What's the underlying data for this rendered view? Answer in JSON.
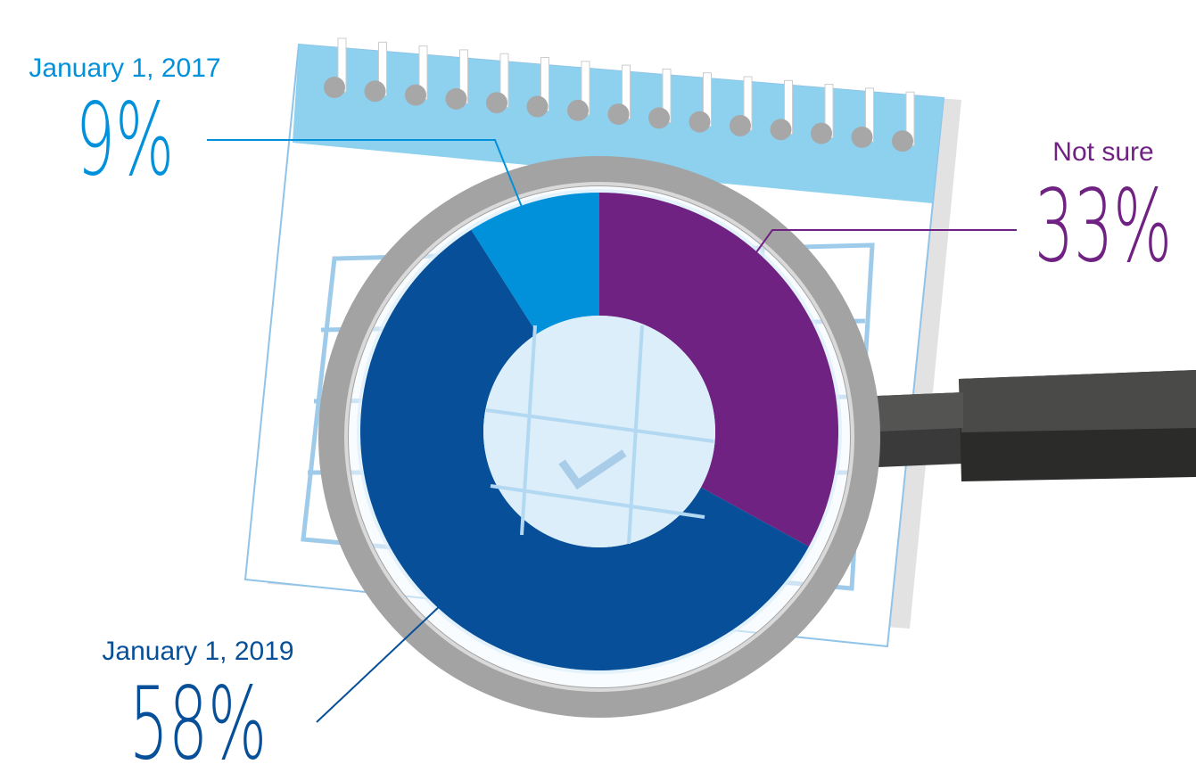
{
  "chart_data": {
    "type": "pie",
    "donut": true,
    "categories": [
      "Not sure",
      "January 1, 2019",
      "January 1, 2017"
    ],
    "values": [
      33,
      58,
      9
    ],
    "value_labels": [
      "33%",
      "58%",
      "9%"
    ],
    "colors": [
      "#702283",
      "#075099",
      "#0091da"
    ]
  }
}
